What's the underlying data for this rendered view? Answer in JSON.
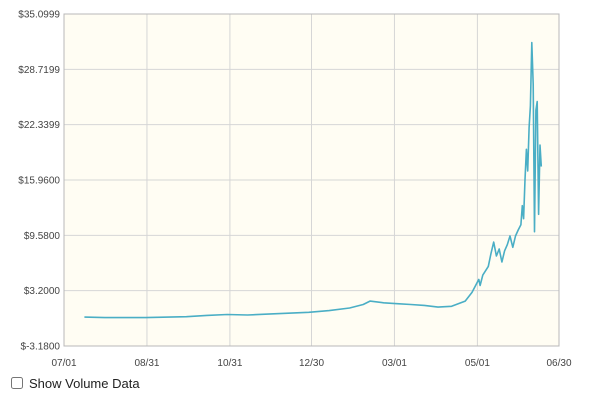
{
  "chart_data": {
    "type": "line",
    "title": "",
    "xlabel": "",
    "ylabel": "",
    "x_tick_labels": [
      "07/01",
      "08/31",
      "10/31",
      "12/30",
      "03/01",
      "05/01",
      "06/30"
    ],
    "y_tick_labels": [
      "$-3.1800",
      "$3.2000",
      "$9.5800",
      "$15.9600",
      "$22.3399",
      "$28.7199",
      "$35.0999"
    ],
    "y_ticks": [
      -3.18,
      3.2,
      9.58,
      15.96,
      22.3399,
      28.7199,
      35.0999
    ],
    "ylim": [
      -3.18,
      35.0999
    ],
    "x_range_days": [
      0,
      364
    ],
    "x_tick_days": [
      0,
      61,
      122,
      182,
      243,
      304,
      364
    ],
    "grid": true,
    "legend": "none",
    "series_color": "#4aaec5",
    "series": [
      {
        "x": [
          15,
          30,
          60,
          90,
          105,
          120,
          135,
          150,
          165,
          180,
          195,
          210,
          220,
          225,
          235,
          245,
          255,
          265,
          275,
          285,
          295,
          300,
          305,
          306,
          308,
          310,
          312,
          314,
          316,
          318,
          320,
          322,
          324,
          326,
          328,
          330,
          332,
          334,
          336,
          337,
          338,
          339,
          340,
          341,
          342,
          343,
          344,
          345,
          346,
          347,
          348,
          349,
          350,
          351
        ],
        "y": [
          0.15,
          0.1,
          0.1,
          0.2,
          0.35,
          0.45,
          0.4,
          0.5,
          0.6,
          0.7,
          0.9,
          1.2,
          1.6,
          2.0,
          1.8,
          1.7,
          1.6,
          1.5,
          1.3,
          1.4,
          2.0,
          3.0,
          4.5,
          3.8,
          5.0,
          5.5,
          6.0,
          7.5,
          8.8,
          7.2,
          8.0,
          6.5,
          7.8,
          8.5,
          9.5,
          8.2,
          9.5,
          10.2,
          10.8,
          13.0,
          11.5,
          16.0,
          19.5,
          17.0,
          22.0,
          24.5,
          31.8,
          27.0,
          10.0,
          24.0,
          25.0,
          12.0,
          20.0,
          17.5
        ]
      }
    ]
  },
  "controls": {
    "show_volume_label": "Show Volume Data",
    "show_volume_checked": false
  }
}
